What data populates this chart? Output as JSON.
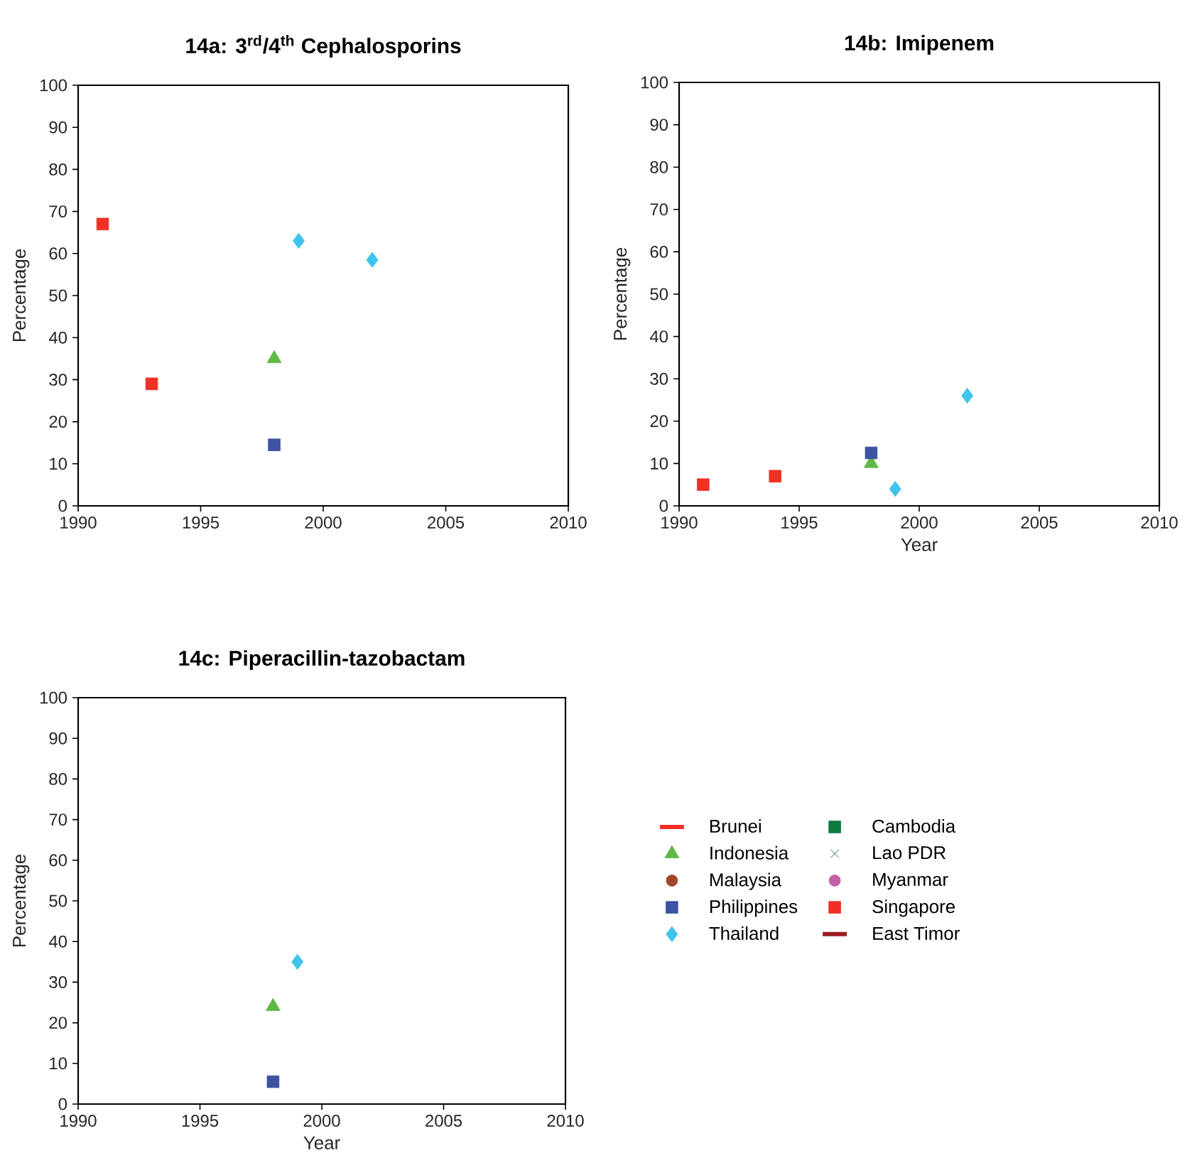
{
  "chart_data": [
    {
      "type": "scatter",
      "title": "14a: 3$^{rd}$/4$^{th}$ Cephalosporins",
      "ylabel": "Percentage",
      "xlim": [
        1990,
        2010
      ],
      "ylim": [
        0,
        100
      ],
      "xticks": [
        1990,
        1995,
        2000,
        2005,
        2010
      ],
      "yticks": [
        0,
        10,
        20,
        30,
        40,
        50,
        60,
        70,
        80,
        90,
        100
      ],
      "series": [
        {
          "color": "#ee3124",
          "marker": "square",
          "x": [
            1991,
            1993
          ],
          "values": [
            67,
            29
          ]
        },
        {
          "color": "#5fb946",
          "marker": "triangle",
          "x": [
            1998
          ],
          "values": [
            35
          ]
        },
        {
          "color": "#3d52a1",
          "marker": "square",
          "x": [
            1998
          ],
          "values": [
            14.5
          ]
        },
        {
          "color": "#3fc4ec",
          "marker": "diamond",
          "x": [
            1999,
            2002
          ],
          "values": [
            63,
            58.5
          ]
        }
      ]
    },
    {
      "type": "scatter",
      "title": "14b: Imipenem",
      "xlabel": "Year",
      "ylabel": "Percentage",
      "xlim": [
        1990,
        2010
      ],
      "ylim": [
        0,
        100
      ],
      "xticks": [
        1990,
        1995,
        2000,
        2005,
        2010
      ],
      "yticks": [
        0,
        10,
        20,
        30,
        40,
        50,
        60,
        70,
        80,
        90,
        100
      ],
      "series": [
        {
          "color": "#ee3124",
          "marker": "square",
          "x": [
            1991,
            1994
          ],
          "values": [
            5,
            7
          ]
        },
        {
          "color": "#5fb946",
          "marker": "triangle",
          "x": [
            1998
          ],
          "values": [
            10
          ]
        },
        {
          "color": "#3d52a1",
          "marker": "square",
          "x": [
            1998
          ],
          "values": [
            12.5
          ]
        },
        {
          "color": "#3fc4ec",
          "marker": "diamond",
          "x": [
            1999,
            2002
          ],
          "values": [
            4,
            26
          ]
        }
      ]
    },
    {
      "type": "scatter",
      "title": "14c: Piperacillin-tazobactam",
      "xlabel": "Year",
      "ylabel": "Percentage",
      "xlim": [
        1990,
        2010
      ],
      "ylim": [
        0,
        100
      ],
      "xticks": [
        1990,
        1995,
        2000,
        2005,
        2010
      ],
      "yticks": [
        0,
        10,
        20,
        30,
        40,
        50,
        60,
        70,
        80,
        90,
        100
      ],
      "legend": "right",
      "series": [
        {
          "name": "Brunei",
          "color": "#ee3124",
          "marker": "none",
          "line_style": "solid"
        },
        {
          "name": "Indonesia",
          "color": "#5fb946",
          "marker": "triangle",
          "x": [
            1998
          ],
          "values": [
            24
          ]
        },
        {
          "name": "Malaysia",
          "color": "#a0462a",
          "marker": "circle"
        },
        {
          "name": "Philippines",
          "color": "#3d52a1",
          "marker": "square",
          "x": [
            1998
          ],
          "values": [
            5.5
          ]
        },
        {
          "name": "Thailand",
          "color": "#3fc4ec",
          "marker": "diamond",
          "x": [
            1999
          ],
          "values": [
            35
          ]
        },
        {
          "name": "Cambodia",
          "color": "#0b7a3e",
          "marker": "square"
        },
        {
          "name": "Lao PDR",
          "color": "#0d3b2a",
          "marker": "cross"
        },
        {
          "name": "Myanmar",
          "color": "#c060a8",
          "marker": "circle"
        },
        {
          "name": "Singapore",
          "color": "#ee3124",
          "marker": "square"
        },
        {
          "name": "East Timor",
          "color": "#9b1c1f",
          "marker": "none",
          "line_style": "solid"
        }
      ]
    }
  ]
}
